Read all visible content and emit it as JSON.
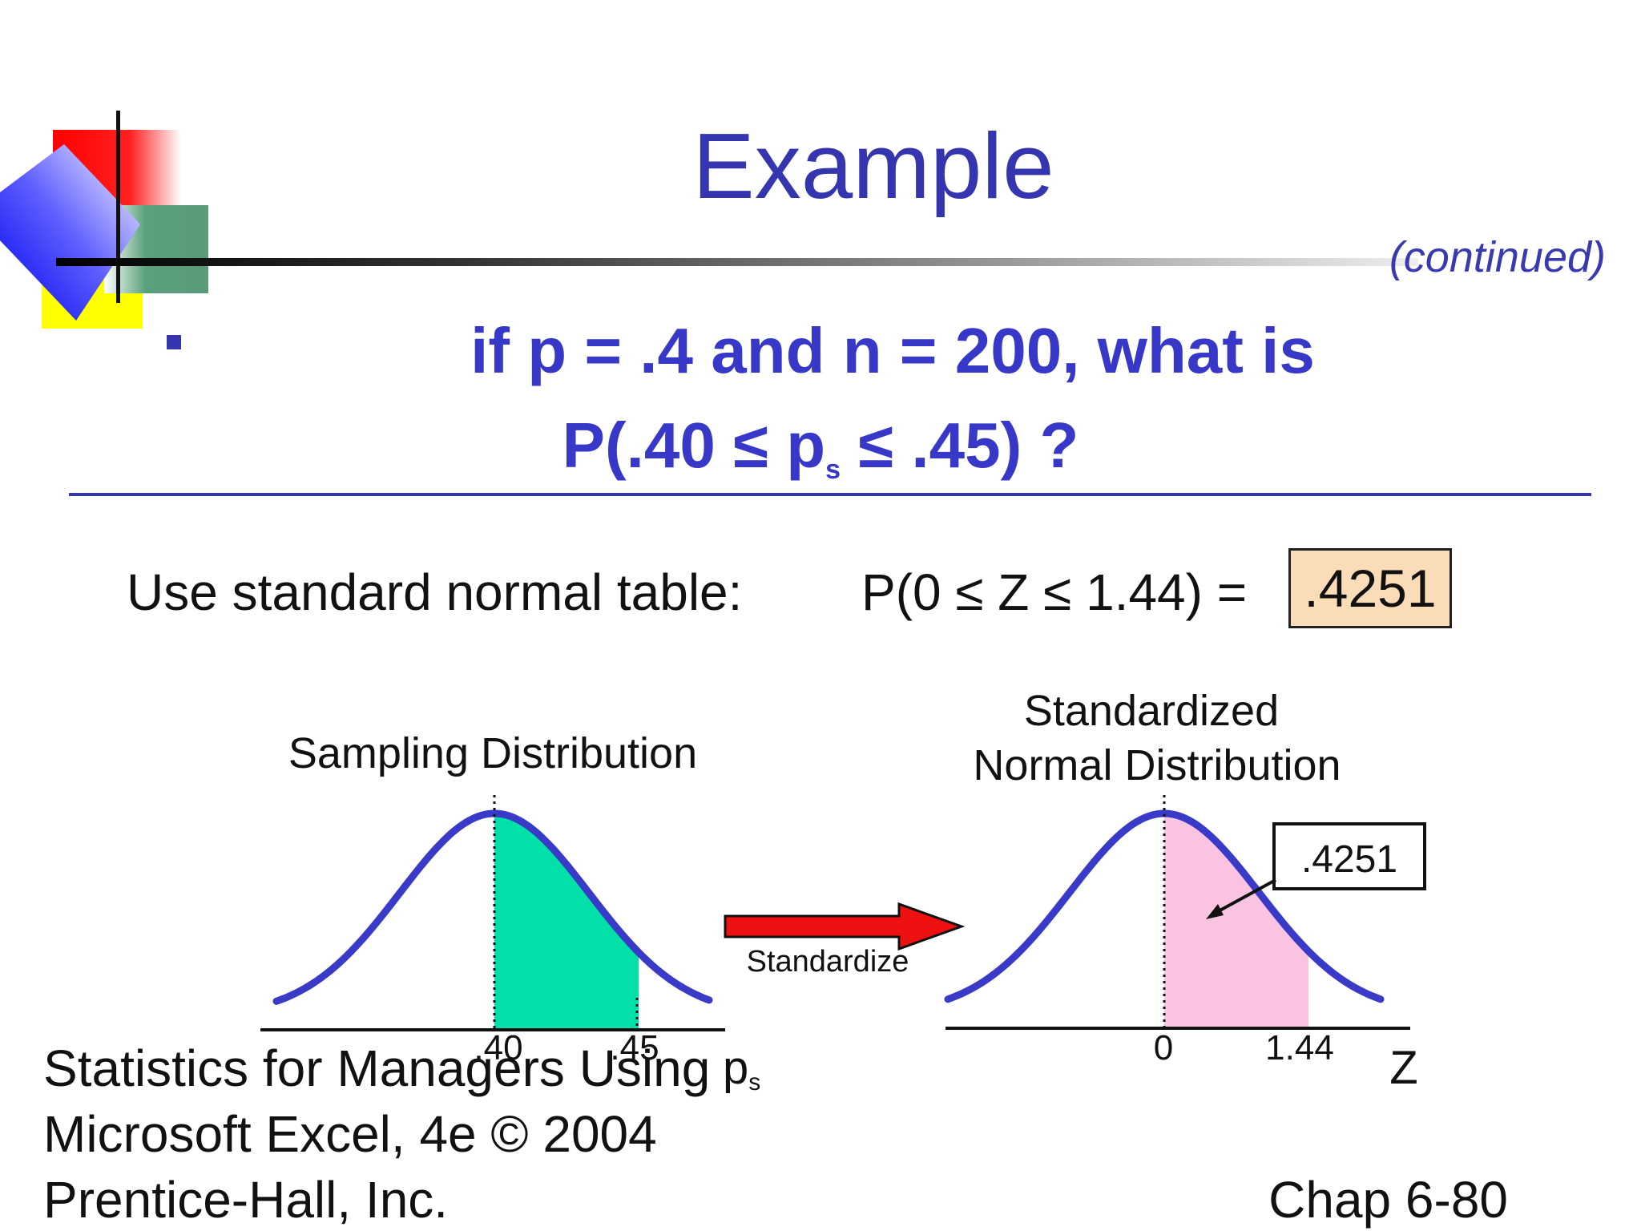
{
  "slide": {
    "title": "Example",
    "continued": "(continued)",
    "question_line1": "if  p = .4  and  n = 200, what is",
    "question_line2_pre": "P(.40 ≤ p",
    "question_line2_sub": "s",
    "question_line2_post": " ≤ .45) ?",
    "table_label": "Use standard normal table:",
    "z_probability": "P(0 ≤ Z ≤ 1.44) =",
    "answer": ".4251"
  },
  "left_chart": {
    "title": "Sampling Distribution",
    "tick_labels": [
      ".40",
      ".45"
    ],
    "axis_label": "p",
    "axis_label_sub": "s",
    "fill_color": "#00e0a8",
    "curve_color": "#3a3ac8",
    "shaded_range": [
      0.4,
      0.45
    ]
  },
  "arrow": {
    "label": "Standardize",
    "color": "#ee1111"
  },
  "right_chart": {
    "title_line1": "Standardized",
    "title_line2": "Normal Distribution",
    "tick_labels": [
      "0",
      "1.44"
    ],
    "axis_label": "Z",
    "area_label": ".4251",
    "fill_color": "#fbc3e2",
    "curve_color": "#3a3ac8",
    "shaded_range": [
      0,
      1.44
    ]
  },
  "footer": {
    "line1": "Statistics for Managers Using",
    "line2": "Microsoft Excel, 4e © 2004",
    "line3": "Prentice-Hall, Inc.",
    "chapter": "Chap 6-80"
  }
}
